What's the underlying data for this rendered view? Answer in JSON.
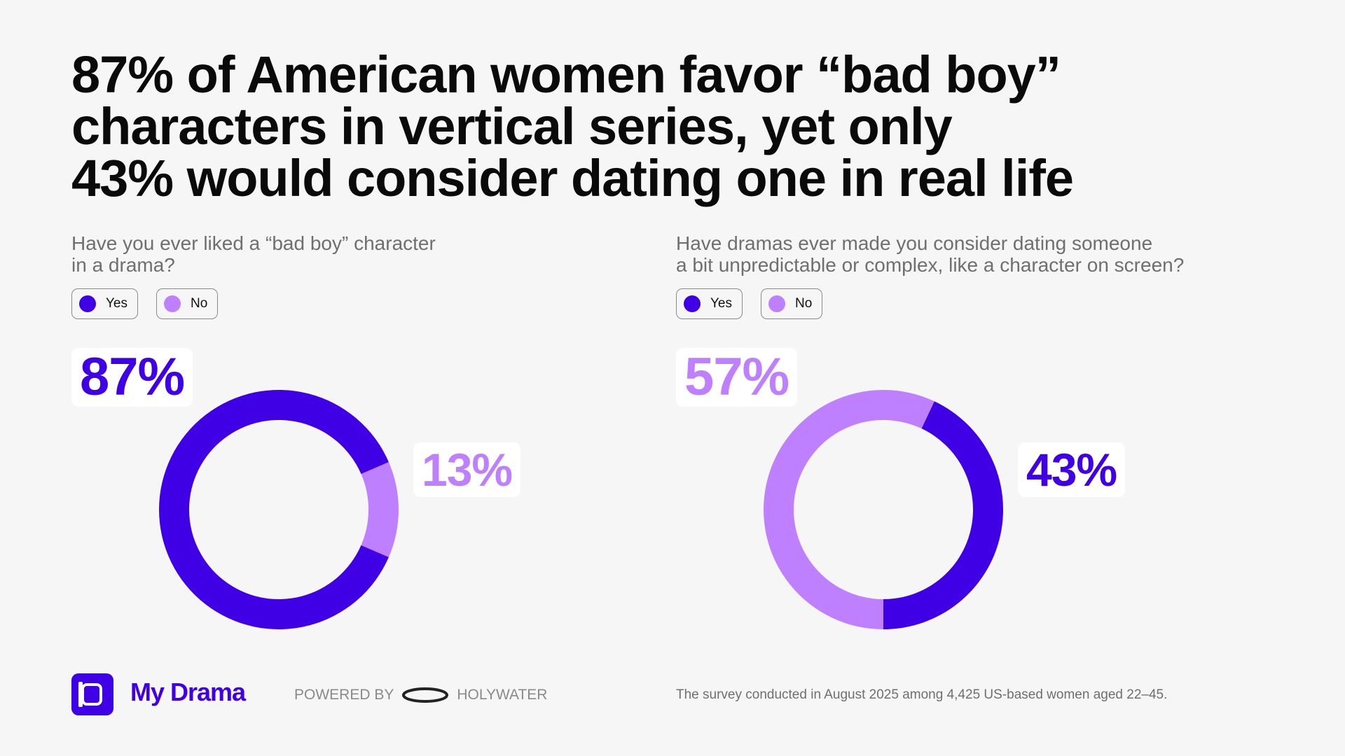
{
  "headline": {
    "lines": [
      "87% of American women favor “bad boy”",
      "characters in vertical series, yet only",
      "43% would consider dating one in real life"
    ]
  },
  "legend": {
    "yes": "Yes",
    "no": "No"
  },
  "colors": {
    "yes": "#4000e6",
    "no": "#bf80ff",
    "background": "#f6f6f6"
  },
  "chart_data": [
    {
      "type": "pie",
      "donut": true,
      "question_lines": [
        "Have you ever liked a “bad boy” character",
        "in a drama?"
      ],
      "categories": [
        "Yes",
        "No"
      ],
      "values": [
        87,
        13
      ],
      "labels": [
        "87%",
        "13%"
      ]
    },
    {
      "type": "pie",
      "donut": true,
      "question_lines": [
        "Have dramas ever made you consider dating someone",
        "a bit unpredictable or complex, like a character on screen?"
      ],
      "categories": [
        "Yes",
        "No"
      ],
      "values": [
        43,
        57
      ],
      "labels": [
        "43%",
        "57%"
      ]
    }
  ],
  "footer": {
    "brand": "My Drama",
    "powered_by": "POWERED BY",
    "partner": "HOLYWATER",
    "note": "The survey conducted in August 2025 among 4,425 US-based women aged 22–45."
  }
}
